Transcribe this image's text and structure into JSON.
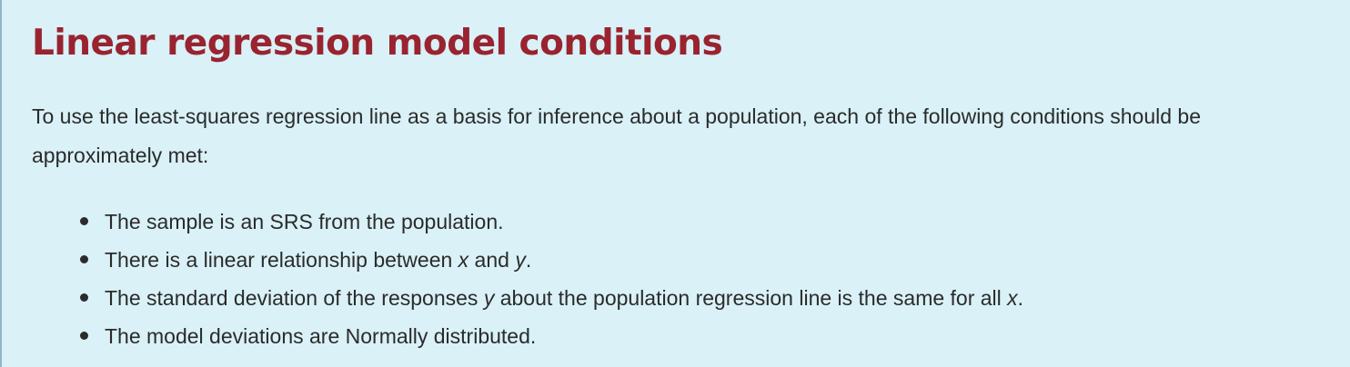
{
  "title": "Linear regression model conditions",
  "intro": "To use the least-squares regression line as a basis for inference about a population, each of the following conditions should be approximately met:",
  "conditions": [
    {
      "text": "The sample is an SRS from the population."
    },
    {
      "pre": "There is a linear relationship between ",
      "var1": "x",
      "mid": " and ",
      "var2": "y",
      "post": "."
    },
    {
      "pre": "The standard deviation of the responses ",
      "var1": "y",
      "mid": " about the population regression line is the same for all ",
      "var2": "x",
      "post": "."
    },
    {
      "text": "The model deviations are Normally distributed."
    }
  ],
  "colors": {
    "background": "#d9f1f7",
    "title": "#9a2330",
    "text": "#2b2b2b",
    "border": "#8fb8c4"
  }
}
